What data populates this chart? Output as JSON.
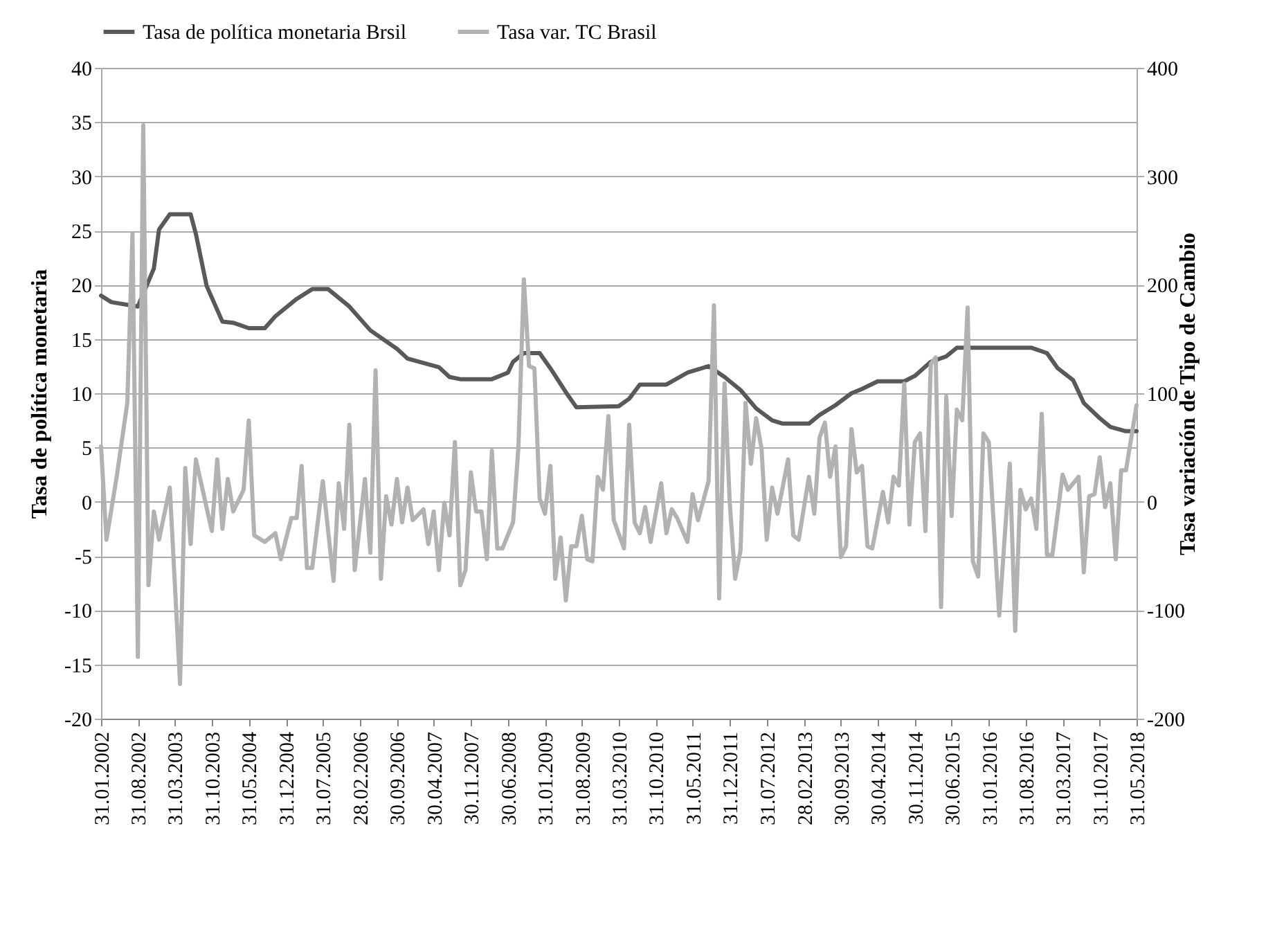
{
  "chart_data": {
    "type": "line",
    "ylabel": "Tasa de política monetaria",
    "y2label": "Tasa variación de Tipo de Cambio",
    "xlim": [
      "2002-01",
      "2018-05"
    ],
    "xticks": [
      {
        "value": "2002-01",
        "label": "31.01.2002"
      },
      {
        "value": "2002-08",
        "label": "31.08.2002"
      },
      {
        "value": "2003-03",
        "label": "31.03.2003"
      },
      {
        "value": "2003-10",
        "label": "31.10.2003"
      },
      {
        "value": "2004-05",
        "label": "31.05.2004"
      },
      {
        "value": "2004-12",
        "label": "31.12.2004"
      },
      {
        "value": "2005-07",
        "label": "31.07.2005"
      },
      {
        "value": "2006-02",
        "label": "28.02.2006"
      },
      {
        "value": "2006-09",
        "label": "30.09.2006"
      },
      {
        "value": "2007-04",
        "label": "30.04.2007"
      },
      {
        "value": "2007-11",
        "label": "30.11.2007"
      },
      {
        "value": "2008-06",
        "label": "30.06.2008"
      },
      {
        "value": "2009-01",
        "label": "31.01.2009"
      },
      {
        "value": "2009-08",
        "label": "31.08.2009"
      },
      {
        "value": "2010-03",
        "label": "31.03.2010"
      },
      {
        "value": "2010-10",
        "label": "31.10.2010"
      },
      {
        "value": "2011-05",
        "label": "31.05.2011"
      },
      {
        "value": "2011-12",
        "label": "31.12.2011"
      },
      {
        "value": "2012-07",
        "label": "31.07.2012"
      },
      {
        "value": "2013-02",
        "label": "28.02.2013"
      },
      {
        "value": "2013-09",
        "label": "30.09.2013"
      },
      {
        "value": "2014-04",
        "label": "30.04.2014"
      },
      {
        "value": "2014-11",
        "label": "30.11.2014"
      },
      {
        "value": "2015-06",
        "label": "30.06.2015"
      },
      {
        "value": "2016-01",
        "label": "31.01.2016"
      },
      {
        "value": "2016-08",
        "label": "31.08.2016"
      },
      {
        "value": "2017-03",
        "label": "31.03.2017"
      },
      {
        "value": "2017-10",
        "label": "31.10.2017"
      },
      {
        "value": "2018-05",
        "label": "31.05.2018"
      }
    ],
    "ylim": [
      -20,
      40
    ],
    "yticks": [
      -20,
      -15,
      -10,
      -5,
      0,
      5,
      10,
      15,
      20,
      25,
      30,
      35,
      40
    ],
    "y2lim": [
      -200,
      400
    ],
    "y2ticks": [
      -200,
      -100,
      0,
      100,
      200,
      300,
      400
    ],
    "grid": "y",
    "legend": "top",
    "line_style": "solid",
    "marker": "none",
    "series": [
      {
        "name": "Tasa de política monetaria Brsil",
        "color": "#595959",
        "x": [
          "2002-01",
          "2002-03",
          "2002-08",
          "2002-11",
          "2002-12",
          "2003-02",
          "2003-06",
          "2003-07",
          "2003-09",
          "2003-12",
          "2004-02",
          "2004-05",
          "2004-08",
          "2004-10",
          "2005-02",
          "2005-05",
          "2005-08",
          "2005-12",
          "2006-04",
          "2006-09",
          "2006-11",
          "2007-05",
          "2007-07",
          "2007-09",
          "2008-03",
          "2008-06",
          "2008-07",
          "2008-09",
          "2008-12",
          "2009-02",
          "2009-05",
          "2009-07",
          "2010-03",
          "2010-05",
          "2010-07",
          "2010-12",
          "2011-04",
          "2011-08",
          "2011-11",
          "2012-02",
          "2012-05",
          "2012-08",
          "2012-10",
          "2013-03",
          "2013-05",
          "2013-08",
          "2013-11",
          "2014-01",
          "2014-04",
          "2014-09",
          "2014-11",
          "2015-02",
          "2015-05",
          "2015-07",
          "2016-09",
          "2016-12",
          "2017-02",
          "2017-05",
          "2017-07",
          "2017-10",
          "2017-12",
          "2018-03",
          "2018-05"
        ],
        "values": [
          19.0,
          18.4,
          18.0,
          21.5,
          25.1,
          26.5,
          26.5,
          24.7,
          19.9,
          16.6,
          16.5,
          16.0,
          16.0,
          17.1,
          18.7,
          19.6,
          19.6,
          18.0,
          15.8,
          14.1,
          13.2,
          12.4,
          11.5,
          11.3,
          11.3,
          11.9,
          12.9,
          13.7,
          13.7,
          12.3,
          10.1,
          8.7,
          8.8,
          9.5,
          10.8,
          10.8,
          11.9,
          12.5,
          11.5,
          10.3,
          8.6,
          7.5,
          7.2,
          7.2,
          8.0,
          8.9,
          10.0,
          10.4,
          11.1,
          11.1,
          11.6,
          12.9,
          13.4,
          14.2,
          14.2,
          13.7,
          12.3,
          11.2,
          9.1,
          7.7,
          6.9,
          6.5,
          6.5
        ]
      },
      {
        "name": "Tasa var. TC Brasil",
        "color": "#b2b2b2",
        "axis": "y2",
        "x": [
          "2002-01",
          "2002-02",
          "2002-04",
          "2002-06",
          "2002-07",
          "2002-08",
          "2002-09",
          "2002-10",
          "2002-11",
          "2002-12",
          "2003-02",
          "2003-04",
          "2003-05",
          "2003-06",
          "2003-07",
          "2003-10",
          "2003-11",
          "2003-12",
          "2004-01",
          "2004-02",
          "2004-04",
          "2004-05",
          "2004-06",
          "2004-08",
          "2004-10",
          "2004-11",
          "2005-01",
          "2005-02",
          "2005-03",
          "2005-04",
          "2005-05",
          "2005-07",
          "2005-09",
          "2005-10",
          "2005-11",
          "2005-12",
          "2006-01",
          "2006-03",
          "2006-04",
          "2006-05",
          "2006-06",
          "2006-07",
          "2006-08",
          "2006-09",
          "2006-10",
          "2006-11",
          "2006-12",
          "2007-02",
          "2007-03",
          "2007-04",
          "2007-05",
          "2007-06",
          "2007-07",
          "2007-08",
          "2007-09",
          "2007-10",
          "2007-11",
          "2007-12",
          "2008-01",
          "2008-02",
          "2008-03",
          "2008-04",
          "2008-05",
          "2008-07",
          "2008-08",
          "2008-09",
          "2008-10",
          "2008-11",
          "2008-12",
          "2009-01",
          "2009-02",
          "2009-03",
          "2009-04",
          "2009-05",
          "2009-06",
          "2009-07",
          "2009-08",
          "2009-09",
          "2009-10",
          "2009-11",
          "2009-12",
          "2010-01",
          "2010-02",
          "2010-04",
          "2010-05",
          "2010-06",
          "2010-07",
          "2010-08",
          "2010-09",
          "2010-11",
          "2010-12",
          "2011-01",
          "2011-02",
          "2011-04",
          "2011-05",
          "2011-06",
          "2011-08",
          "2011-09",
          "2011-10",
          "2011-11",
          "2011-12",
          "2012-01",
          "2012-02",
          "2012-03",
          "2012-04",
          "2012-05",
          "2012-06",
          "2012-07",
          "2012-08",
          "2012-09",
          "2012-11",
          "2012-12",
          "2013-01",
          "2013-03",
          "2013-04",
          "2013-05",
          "2013-06",
          "2013-07",
          "2013-08",
          "2013-09",
          "2013-10",
          "2013-11",
          "2013-12",
          "2014-01",
          "2014-02",
          "2014-03",
          "2014-05",
          "2014-06",
          "2014-07",
          "2014-08",
          "2014-09",
          "2014-10",
          "2014-11",
          "2014-12",
          "2015-01",
          "2015-02",
          "2015-03",
          "2015-04",
          "2015-05",
          "2015-06",
          "2015-07",
          "2015-08",
          "2015-09",
          "2015-10",
          "2015-11",
          "2015-12",
          "2016-01",
          "2016-03",
          "2016-05",
          "2016-06",
          "2016-07",
          "2016-08",
          "2016-09",
          "2016-10",
          "2016-11",
          "2016-12",
          "2017-01",
          "2017-03",
          "2017-04",
          "2017-06",
          "2017-07",
          "2017-08",
          "2017-09",
          "2017-10",
          "2017-11",
          "2017-12",
          "2018-01",
          "2018-02",
          "2018-03",
          "2018-05"
        ],
        "values": [
          51,
          -35,
          23,
          91,
          247,
          -143,
          347,
          -77,
          -9,
          -35,
          13,
          -168,
          31,
          -39,
          39,
          -27,
          39,
          -25,
          21,
          -9,
          11,
          75,
          -31,
          -37,
          -29,
          -53,
          -15,
          -15,
          33,
          -61,
          -61,
          19,
          -73,
          17,
          -25,
          71,
          -63,
          21,
          -47,
          121,
          -71,
          5,
          -21,
          21,
          -19,
          13,
          -17,
          -7,
          -39,
          -9,
          -63,
          -1,
          -31,
          55,
          -77,
          -63,
          27,
          -9,
          -9,
          -53,
          47,
          -43,
          -43,
          -19,
          51,
          205,
          125,
          123,
          3,
          -11,
          33,
          -71,
          -33,
          -91,
          -41,
          -41,
          -13,
          -53,
          -55,
          23,
          11,
          79,
          -17,
          -43,
          71,
          -19,
          -29,
          -5,
          -37,
          17,
          -29,
          -7,
          -15,
          -37,
          7,
          -17,
          19,
          181,
          -89,
          109,
          -1,
          -71,
          -45,
          91,
          35,
          77,
          49,
          -35,
          13,
          -11,
          39,
          -31,
          -35,
          23,
          -11,
          59,
          73,
          23,
          51,
          -51,
          -41,
          67,
          27,
          33,
          -41,
          -43,
          9,
          -19,
          23,
          15,
          109,
          -21,
          55,
          63,
          -27,
          127,
          133,
          -97,
          97,
          -13,
          85,
          75,
          179,
          -55,
          -69,
          63,
          55,
          -105,
          35,
          -119,
          11,
          -7,
          3,
          -25,
          81,
          -49,
          -49,
          25,
          11,
          23,
          -65,
          5,
          7,
          41,
          -5,
          17,
          -53,
          29,
          29,
          89
        ]
      }
    ]
  }
}
